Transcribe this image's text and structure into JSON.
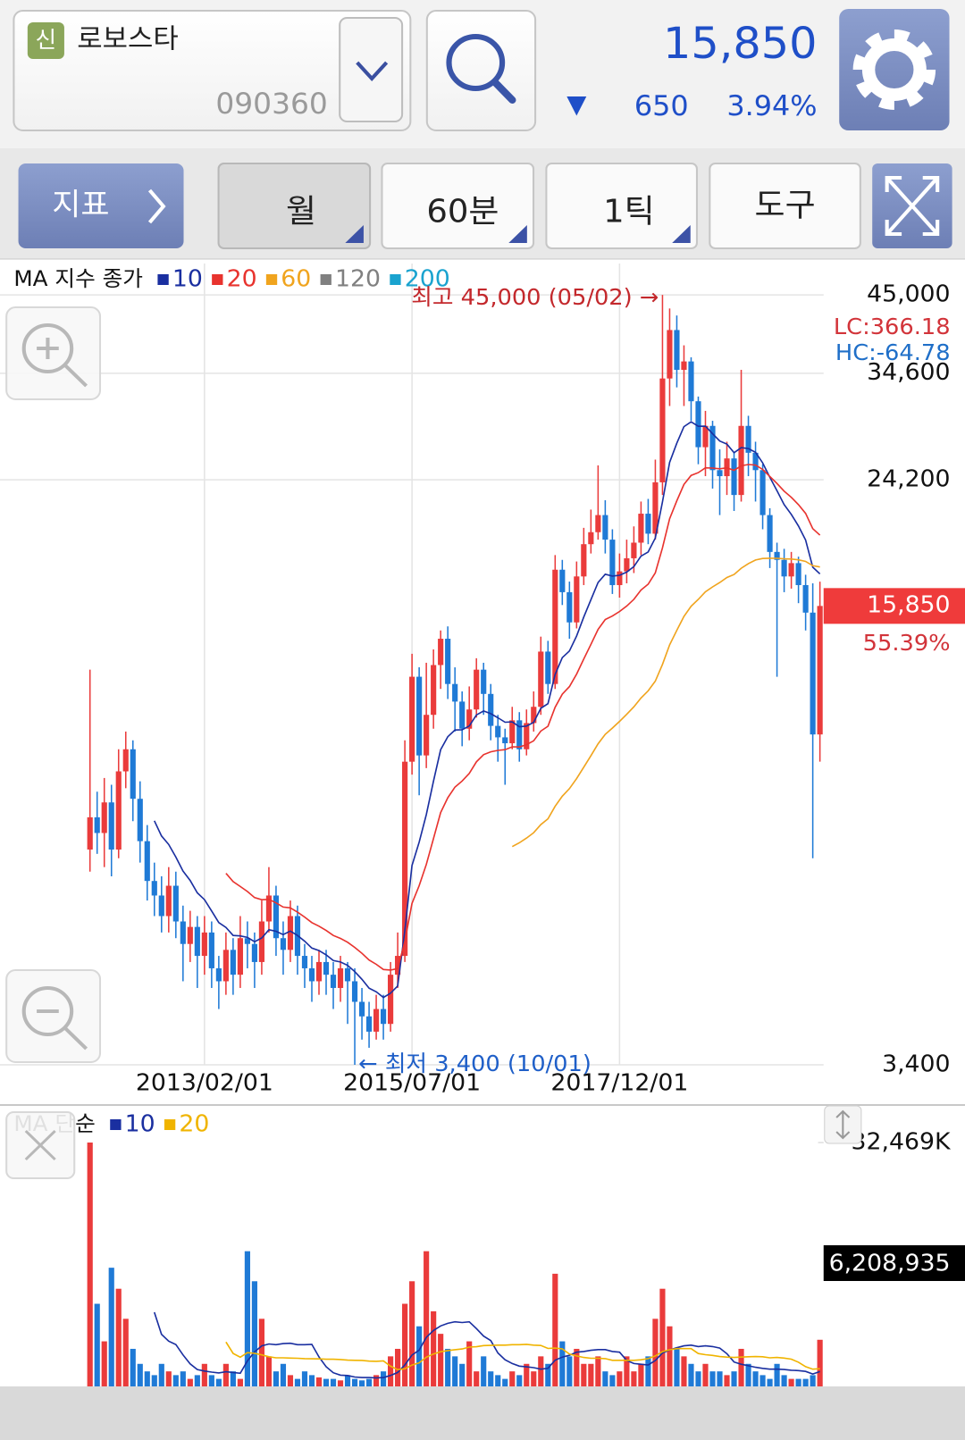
{
  "header": {
    "badge": "신",
    "stock_name": "로보스타",
    "stock_code": "090360",
    "price": "15,850",
    "change_arrow": "▼",
    "change": "650",
    "change_rate": "3.94%"
  },
  "toolbar": {
    "indicator": "지표",
    "period": "월",
    "minutes": "60분",
    "tick": "1틱",
    "tools": "도구"
  },
  "chart_data": [
    {
      "type": "candlestick",
      "legend_title": "MA 지수 종가",
      "categories": [
        null,
        null,
        null,
        null,
        null,
        null,
        null,
        null,
        null,
        null,
        null,
        null,
        null,
        null,
        null,
        null,
        "2013/02/01",
        null,
        null,
        null,
        null,
        null,
        null,
        null,
        null,
        null,
        null,
        null,
        null,
        null,
        null,
        null,
        null,
        null,
        null,
        null,
        null,
        null,
        null,
        null,
        null,
        null,
        null,
        null,
        null,
        "2015/07/01",
        null,
        null,
        null,
        null,
        null,
        null,
        null,
        null,
        null,
        null,
        null,
        null,
        null,
        null,
        null,
        null,
        null,
        null,
        null,
        null,
        null,
        null,
        null,
        null,
        null,
        null,
        null,
        null,
        "2017/12/01",
        null,
        null,
        null,
        null,
        null,
        null,
        null,
        null,
        null,
        null,
        null,
        null,
        null,
        null,
        null,
        null,
        null,
        null,
        null,
        null,
        null,
        null,
        null,
        null,
        null,
        null,
        null,
        null
      ],
      "open": [
        7000,
        7800,
        7400,
        8200,
        7000,
        9100,
        9800,
        8300,
        7200,
        6300,
        6000,
        5600,
        6200,
        5500,
        5100,
        5400,
        4900,
        5300,
        4700,
        4500,
        5000,
        4600,
        5200,
        5100,
        4800,
        5500,
        6000,
        5200,
        5000,
        5600,
        4900,
        4700,
        4500,
        4800,
        4600,
        4400,
        4700,
        4500,
        4200,
        4000,
        3800,
        4100,
        3900,
        4600,
        4900,
        9400,
        12500,
        9600,
        11000,
        13000,
        14200,
        12200,
        11500,
        10500,
        11200,
        12800,
        11800,
        10600,
        10200,
        10000,
        10800,
        9800,
        10700,
        11300,
        13600,
        12200,
        17900,
        16600,
        15000,
        17500,
        19500,
        20300,
        21500,
        19800,
        17000,
        17800,
        18600,
        19600,
        21600,
        20200,
        24000,
        34000,
        40000,
        35000,
        36000,
        31500,
        27000,
        29000,
        25000,
        24500,
        26000,
        23000,
        29000,
        26500,
        25000,
        21500,
        19000,
        18500,
        17500,
        18300,
        17000,
        15500,
        10300
      ],
      "high": [
        12800,
        8500,
        8900,
        8700,
        9800,
        10400,
        10100,
        8800,
        7600,
        6700,
        6400,
        6600,
        6500,
        5800,
        5700,
        5600,
        5600,
        5500,
        4900,
        5300,
        5200,
        5600,
        5500,
        5300,
        5900,
        6600,
        6200,
        5500,
        5900,
        5800,
        5100,
        4900,
        5000,
        5000,
        4800,
        4900,
        4800,
        4700,
        4400,
        4200,
        4300,
        4300,
        4800,
        5300,
        10100,
        13500,
        12900,
        13100,
        13700,
        14600,
        14800,
        12900,
        11900,
        12100,
        13300,
        13100,
        12200,
        11000,
        10500,
        11300,
        11100,
        11200,
        11900,
        14300,
        14100,
        18800,
        18500,
        17200,
        18400,
        20600,
        21900,
        25400,
        22600,
        20500,
        18900,
        19800,
        20700,
        22500,
        22700,
        25900,
        45000,
        43000,
        42000,
        38000,
        36500,
        32000,
        30500,
        29500,
        26800,
        27500,
        26500,
        35000,
        30000,
        27500,
        25500,
        22000,
        19600,
        19200,
        19000,
        18700,
        17600,
        17100,
        17200
      ],
      "low": [
        6500,
        6900,
        6600,
        6400,
        6800,
        8600,
        7700,
        6700,
        5900,
        5600,
        5300,
        5300,
        5200,
        4500,
        4800,
        4400,
        4600,
        4400,
        4100,
        4300,
        4300,
        4400,
        4700,
        4400,
        4600,
        5300,
        4900,
        4600,
        4800,
        4600,
        4400,
        4200,
        4300,
        4300,
        4100,
        4200,
        3900,
        3400,
        3700,
        3600,
        3700,
        3700,
        3800,
        4400,
        4800,
        9000,
        8400,
        9200,
        10500,
        12000,
        11600,
        10400,
        9900,
        10100,
        10900,
        11000,
        10100,
        9400,
        8700,
        9800,
        9400,
        9600,
        10400,
        11000,
        11800,
        12000,
        15900,
        14200,
        14700,
        17000,
        18900,
        19800,
        18900,
        16500,
        16300,
        17100,
        17700,
        18800,
        19500,
        19800,
        23000,
        31000,
        33000,
        31000,
        29500,
        25500,
        24500,
        23500,
        21500,
        23000,
        21800,
        22500,
        24500,
        22500,
        20500,
        18000,
        12500,
        16600,
        16800,
        16000,
        14600,
        6800,
        9400
      ],
      "close": [
        7800,
        7400,
        8200,
        7000,
        9100,
        9800,
        8300,
        7200,
        6300,
        6000,
        5600,
        6200,
        5500,
        5100,
        5400,
        4900,
        5300,
        4700,
        4500,
        5000,
        4600,
        5200,
        5100,
        4800,
        5500,
        6000,
        5200,
        5000,
        5600,
        4900,
        4700,
        4500,
        4800,
        4600,
        4400,
        4700,
        4500,
        4200,
        4000,
        3800,
        4100,
        3900,
        4600,
        4900,
        9400,
        12500,
        9600,
        11000,
        13000,
        14200,
        12200,
        11500,
        10500,
        11200,
        12800,
        11800,
        10600,
        10200,
        10000,
        10800,
        9800,
        10700,
        11300,
        13600,
        12200,
        17900,
        16600,
        15000,
        17500,
        19500,
        20300,
        21500,
        19800,
        17000,
        17800,
        18600,
        19600,
        21600,
        20200,
        24000,
        34000,
        40000,
        35000,
        36000,
        31500,
        27000,
        29000,
        25000,
        24500,
        26000,
        23000,
        29000,
        26500,
        25000,
        21500,
        19000,
        18500,
        17500,
        18300,
        17000,
        15500,
        10300,
        15850
      ],
      "up_color": "#ea3b3b",
      "down_color": "#1f7ad6",
      "ma_type": "exponential",
      "moving_averages": [
        {
          "name": 10,
          "color": "#1a2fa0"
        },
        {
          "name": 20,
          "color": "#e8332e"
        },
        {
          "name": 60,
          "color": "#f0a41e"
        },
        {
          "name": 120,
          "color": "#808080"
        },
        {
          "name": 200,
          "color": "#1aa3cf"
        }
      ],
      "ylim": [
        3400,
        50000
      ],
      "log_scale": true,
      "grid": true,
      "yticks": [
        {
          "value": 45000,
          "label": "45,000"
        },
        {
          "value": 34600,
          "label": "34,600"
        },
        {
          "value": 24200,
          "label": "24,200"
        },
        {
          "value": 3400,
          "label": "3,400"
        }
      ],
      "last_price": {
        "value": 15850,
        "label": "15,850"
      },
      "high_label": "최고 45,000 (05/02) →",
      "low_label": "← 최저 3,400 (10/01)",
      "lc_label": "LC:366.18",
      "hc_label": "HC:-64.78",
      "change_from_low": "55.39%"
    },
    {
      "type": "bar",
      "legend_title": "MA 단순",
      "values": [
        32469000,
        11000000,
        6000000,
        15800000,
        13000000,
        9000000,
        5000000,
        3000000,
        2000000,
        1500000,
        3000000,
        2000000,
        1500000,
        2000000,
        1000000,
        1500000,
        3000000,
        1500000,
        1000000,
        3000000,
        2000000,
        1000000,
        18000000,
        14000000,
        9000000,
        4000000,
        2000000,
        3000000,
        1500000,
        1000000,
        2000000,
        1500000,
        1200000,
        1000000,
        1000000,
        800000,
        1500000,
        1000000,
        800000,
        1000000,
        1500000,
        2000000,
        4000000,
        5000000,
        11000000,
        14000000,
        8000000,
        18000000,
        10000000,
        7000000,
        5000000,
        4000000,
        3000000,
        6000000,
        2000000,
        4000000,
        2000000,
        1500000,
        1000000,
        2000000,
        1500000,
        3000000,
        2000000,
        4000000,
        3000000,
        15000000,
        6000000,
        4000000,
        5000000,
        3000000,
        3000000,
        4000000,
        2000000,
        1500000,
        2000000,
        4000000,
        2000000,
        3000000,
        4000000,
        9000000,
        13000000,
        8000000,
        5000000,
        4000000,
        3000000,
        2000000,
        3000000,
        2000000,
        2000000,
        1500000,
        2000000,
        5000000,
        3000000,
        2000000,
        1500000,
        1000000,
        3000000,
        1500000,
        1000000,
        1000000,
        1000000,
        1500000,
        6208935
      ],
      "value_labels": [
        null,
        null,
        null,
        null,
        null,
        null,
        null,
        null,
        null,
        null,
        null,
        null,
        null,
        null,
        null,
        null,
        null,
        null,
        null,
        null,
        null,
        null,
        null,
        null,
        null,
        null,
        null,
        null,
        null,
        null,
        null,
        null,
        null,
        null,
        null,
        null,
        null,
        null,
        null,
        null,
        null,
        null,
        null,
        null,
        null,
        null,
        null,
        null,
        null,
        null,
        null,
        null,
        null,
        null,
        null,
        null,
        null,
        null,
        null,
        null,
        null,
        null,
        null,
        null,
        null,
        null,
        null,
        null,
        null,
        null,
        null,
        null,
        null,
        null,
        null,
        null,
        null,
        null,
        null,
        null,
        null,
        null,
        null,
        null,
        null,
        null,
        null,
        null,
        null,
        null,
        null,
        null,
        null,
        null,
        null,
        null,
        null,
        null,
        null,
        null,
        null,
        null,
        "6,208,935"
      ],
      "ma_type": "simple",
      "moving_averages": [
        {
          "name": 10,
          "color": "#1a2fa0"
        },
        {
          "name": 20,
          "color": "#f0b400"
        }
      ],
      "ylim": [
        0,
        32469000
      ],
      "yticks": [
        {
          "value": 32469000,
          "label": "32,469K"
        }
      ]
    }
  ]
}
